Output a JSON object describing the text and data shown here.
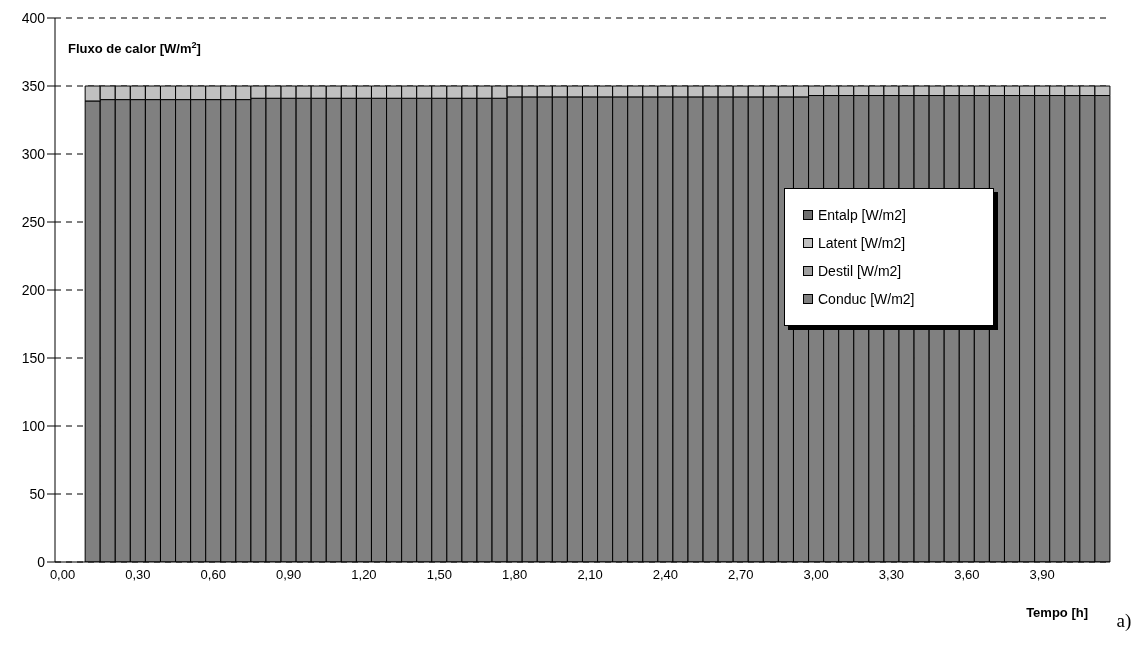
{
  "chart_data": {
    "type": "bar",
    "stacked": true,
    "xlabel": "Tempo [h]",
    "ylabel": "Fluxo de calor [W/m$^{2}$]",
    "categories": [
      "0,00",
      null,
      null,
      null,
      null,
      "0,30",
      null,
      null,
      null,
      null,
      "0,60",
      null,
      null,
      null,
      null,
      "0,90",
      null,
      null,
      null,
      null,
      "1,20",
      null,
      null,
      null,
      null,
      "1,50",
      null,
      null,
      null,
      null,
      "1,80",
      null,
      null,
      null,
      null,
      "2,10",
      null,
      null,
      null,
      null,
      "2,40",
      null,
      null,
      null,
      null,
      "2,70",
      null,
      null,
      null,
      null,
      "3,00",
      null,
      null,
      null,
      null,
      "3,30",
      null,
      null,
      null,
      null,
      "3,60",
      null,
      null,
      null,
      null,
      "3,90",
      null,
      null,
      null,
      null
    ],
    "series": [
      {
        "name": "Conduc [W/m2]",
        "color": "#808080",
        "values": [
          null,
          null,
          339,
          340,
          340,
          340,
          340,
          340,
          340,
          340,
          340,
          340,
          340,
          341,
          341,
          341,
          341,
          341,
          341,
          341,
          341,
          341,
          341,
          341,
          341,
          341,
          341,
          341,
          341,
          341,
          342,
          342,
          342,
          342,
          342,
          342,
          342,
          342,
          342,
          342,
          342,
          342,
          342,
          342,
          342,
          342,
          342,
          342,
          342,
          342,
          343,
          343,
          343,
          343,
          343,
          343,
          343,
          343,
          343,
          343,
          343,
          343,
          343,
          343,
          343,
          343,
          343,
          343,
          343,
          343
        ]
      },
      {
        "name": "Destil [W/m2]",
        "color": "#a0a0a0",
        "values": [
          null,
          null,
          0,
          0,
          0,
          0,
          0,
          0,
          0,
          0,
          0,
          0,
          0,
          0,
          0,
          0,
          0,
          0,
          0,
          0,
          0,
          0,
          0,
          0,
          0,
          0,
          0,
          0,
          0,
          0,
          0,
          0,
          0,
          0,
          0,
          0,
          0,
          0,
          0,
          0,
          0,
          0,
          0,
          0,
          0,
          0,
          0,
          0,
          0,
          0,
          0,
          0,
          0,
          0,
          0,
          0,
          0,
          0,
          0,
          0,
          0,
          0,
          0,
          0,
          0,
          0,
          0,
          0,
          0,
          0
        ]
      },
      {
        "name": "Latent [W/m2]",
        "color": "#c0c0c0",
        "values": [
          null,
          null,
          11,
          10,
          10,
          10,
          10,
          10,
          10,
          10,
          10,
          10,
          10,
          9,
          9,
          9,
          9,
          9,
          9,
          9,
          9,
          9,
          9,
          9,
          9,
          9,
          9,
          9,
          9,
          9,
          8,
          8,
          8,
          8,
          8,
          8,
          8,
          8,
          8,
          8,
          8,
          8,
          8,
          8,
          8,
          8,
          8,
          8,
          8,
          8,
          7,
          7,
          7,
          7,
          7,
          7,
          7,
          7,
          7,
          7,
          7,
          7,
          7,
          7,
          7,
          7,
          7,
          7,
          7,
          7
        ]
      },
      {
        "name": "Entalp [W/m2]",
        "color": "#707070",
        "values": [
          null,
          null,
          0,
          0,
          0,
          0,
          0,
          0,
          0,
          0,
          0,
          0,
          0,
          0,
          0,
          0,
          0,
          0,
          0,
          0,
          0,
          0,
          0,
          0,
          0,
          0,
          0,
          0,
          0,
          0,
          0,
          0,
          0,
          0,
          0,
          0,
          0,
          0,
          0,
          0,
          0,
          0,
          0,
          0,
          0,
          0,
          0,
          0,
          0,
          0,
          0,
          0,
          0,
          0,
          0,
          0,
          0,
          0,
          0,
          0,
          0,
          0,
          0,
          0,
          0,
          0,
          0,
          0,
          0,
          0
        ]
      }
    ],
    "ylim": [
      0,
      400
    ],
    "yticks": [
      0,
      50,
      100,
      150,
      200,
      250,
      300,
      350,
      400
    ],
    "grid": "y",
    "legend": "right",
    "annotations": [
      "a)"
    ]
  }
}
